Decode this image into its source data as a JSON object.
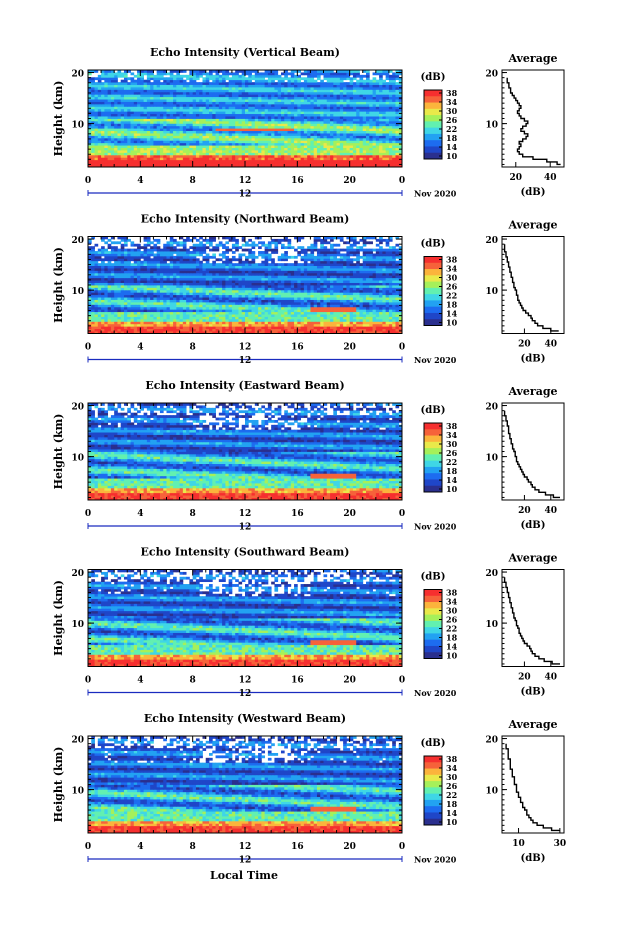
{
  "footer": {
    "xlabel": "Local Time"
  },
  "colorbar": {
    "unit": "(dB)",
    "ticks": [
      "38",
      "34",
      "30",
      "26",
      "22",
      "18",
      "14",
      "10"
    ],
    "colors": [
      "#2a2f8e",
      "#1f46c8",
      "#1d6cf0",
      "#22a2f2",
      "#3fd6e6",
      "#62f0b0",
      "#a6f05a",
      "#e9e94a",
      "#fbb43c",
      "#f6623a",
      "#f62f2f"
    ]
  },
  "chart_data": [
    {
      "type": "heatmap",
      "title": "Echo Intensity (Vertical Beam)",
      "ylabel": "Height (km)",
      "xticks": [
        "0",
        "4",
        "8",
        "12",
        "16",
        "20",
        "0"
      ],
      "yticks": [
        "20",
        "10"
      ],
      "xlim": [
        0,
        24
      ],
      "ylim": [
        1.5,
        20.5
      ],
      "date_center": "12",
      "date_label": "Nov 2020",
      "colorbar_range": [
        10,
        38
      ],
      "profile": {
        "title": "Average",
        "xlabel": "(dB)",
        "xticks": [
          "20",
          "40"
        ],
        "xlim": [
          12,
          48
        ],
        "heights": [
          2.0,
          2.5,
          3.0,
          3.5,
          4.0,
          4.5,
          5.0,
          5.5,
          6.0,
          6.5,
          7.0,
          7.5,
          8.0,
          8.5,
          9.0,
          9.5,
          10.0,
          10.5,
          11.0,
          11.5,
          12.0,
          12.5,
          13.0,
          13.5,
          14.0,
          14.5,
          15.0,
          15.5,
          16.0,
          16.5,
          17.0,
          17.5,
          18.0,
          18.5,
          19.0
        ],
        "values": [
          46,
          44,
          38,
          30,
          24,
          22,
          21,
          22,
          23,
          22,
          24,
          26,
          27,
          25,
          23,
          24,
          26,
          27,
          25,
          23,
          22,
          21,
          22,
          23,
          22,
          21,
          20,
          19,
          18,
          17,
          17,
          16,
          16,
          15,
          15
        ]
      }
    },
    {
      "type": "heatmap",
      "title": "Echo Intensity (Northward Beam)",
      "ylabel": "Height (km)",
      "xticks": [
        "0",
        "4",
        "8",
        "12",
        "16",
        "20",
        "0"
      ],
      "yticks": [
        "20",
        "10"
      ],
      "xlim": [
        0,
        24
      ],
      "ylim": [
        1.5,
        20.5
      ],
      "date_center": "12",
      "date_label": "Nov 2020",
      "colorbar_range": [
        10,
        38
      ],
      "profile": {
        "title": "Average",
        "xlabel": "(dB)",
        "xticks": [
          "20",
          "40"
        ],
        "xlim": [
          3,
          50
        ],
        "heights": [
          2.0,
          2.5,
          3.0,
          3.5,
          4.0,
          4.5,
          5.0,
          5.5,
          6.0,
          6.5,
          7.0,
          7.5,
          8.0,
          8.5,
          9.0,
          9.5,
          10.0,
          10.5,
          11.0,
          11.5,
          12.0,
          12.5,
          13.0,
          13.5,
          14.0,
          14.5,
          15.0,
          15.5,
          16.0,
          16.5,
          17.0,
          17.5,
          18.0,
          18.5,
          19.0
        ],
        "values": [
          46,
          40,
          34,
          30,
          28,
          26,
          25,
          23,
          21,
          19,
          18,
          17,
          16,
          15,
          15,
          14,
          14,
          13,
          12,
          12,
          11,
          11,
          10,
          10,
          9,
          9,
          8,
          8,
          7,
          7,
          6,
          6,
          5,
          5,
          5
        ]
      }
    },
    {
      "type": "heatmap",
      "title": "Echo Intensity (Eastward Beam)",
      "ylabel": "Height (km)",
      "xticks": [
        "0",
        "4",
        "8",
        "12",
        "16",
        "20",
        "0"
      ],
      "yticks": [
        "20",
        "10"
      ],
      "xlim": [
        0,
        24
      ],
      "ylim": [
        1.5,
        20.5
      ],
      "date_center": "12",
      "date_label": "Nov 2020",
      "colorbar_range": [
        10,
        38
      ],
      "profile": {
        "title": "Average",
        "xlabel": "(dB)",
        "xticks": [
          "20",
          "40"
        ],
        "xlim": [
          3,
          50
        ],
        "heights": [
          2.0,
          2.5,
          3.0,
          3.5,
          4.0,
          4.5,
          5.0,
          5.5,
          6.0,
          6.5,
          7.0,
          7.5,
          8.0,
          8.5,
          9.0,
          9.5,
          10.0,
          10.5,
          11.0,
          11.5,
          12.0,
          12.5,
          13.0,
          13.5,
          14.0,
          14.5,
          15.0,
          15.5,
          16.0,
          16.5,
          17.0,
          17.5,
          18.0,
          18.5,
          19.0
        ],
        "values": [
          47,
          42,
          36,
          31,
          28,
          26,
          25,
          23,
          22,
          20,
          19,
          18,
          17,
          16,
          15,
          14,
          14,
          13,
          13,
          12,
          11,
          11,
          10,
          10,
          9,
          9,
          8,
          8,
          8,
          7,
          7,
          6,
          6,
          5,
          5
        ]
      }
    },
    {
      "type": "heatmap",
      "title": "Echo Intensity (Southward Beam)",
      "ylabel": "Height (km)",
      "xticks": [
        "0",
        "4",
        "8",
        "12",
        "16",
        "20",
        "0"
      ],
      "yticks": [
        "20",
        "10"
      ],
      "xlim": [
        0,
        24
      ],
      "ylim": [
        1.5,
        20.5
      ],
      "date_center": "12",
      "date_label": "Nov 2020",
      "colorbar_range": [
        10,
        38
      ],
      "profile": {
        "title": "Average",
        "xlabel": "(dB)",
        "xticks": [
          "20",
          "40"
        ],
        "xlim": [
          3,
          50
        ],
        "heights": [
          2.0,
          2.5,
          3.0,
          3.5,
          4.0,
          4.5,
          5.0,
          5.5,
          6.0,
          6.5,
          7.0,
          7.5,
          8.0,
          8.5,
          9.0,
          9.5,
          10.0,
          10.5,
          11.0,
          11.5,
          12.0,
          12.5,
          13.0,
          13.5,
          14.0,
          14.5,
          15.0,
          15.5,
          16.0,
          16.5,
          17.0,
          17.5,
          18.0,
          18.5,
          19.0
        ],
        "values": [
          47,
          41,
          35,
          31,
          28,
          26,
          25,
          24,
          22,
          20,
          19,
          18,
          17,
          16,
          16,
          15,
          14,
          14,
          13,
          12,
          12,
          11,
          11,
          10,
          10,
          9,
          9,
          8,
          8,
          7,
          7,
          6,
          6,
          5,
          5
        ]
      }
    },
    {
      "type": "heatmap",
      "title": "Echo Intensity (Westward Beam)",
      "ylabel": "Height (km)",
      "xticks": [
        "0",
        "4",
        "8",
        "12",
        "16",
        "20",
        "0"
      ],
      "yticks": [
        "20",
        "10"
      ],
      "xlim": [
        0,
        24
      ],
      "ylim": [
        1.5,
        20.5
      ],
      "date_center": "12",
      "date_label": "Nov 2020",
      "colorbar_range": [
        10,
        38
      ],
      "profile": {
        "title": "Average",
        "xlabel": "(dB)",
        "xticks": [
          "10",
          "30"
        ],
        "xlim": [
          2,
          32
        ],
        "heights": [
          2.0,
          2.5,
          3.0,
          3.5,
          4.0,
          4.5,
          5.0,
          5.5,
          6.0,
          6.5,
          7.0,
          7.5,
          8.0,
          8.5,
          9.0,
          9.5,
          10.0,
          10.5,
          11.0,
          11.5,
          12.0,
          12.5,
          13.0,
          13.5,
          14.0,
          14.5,
          15.0,
          15.5,
          16.0,
          16.5,
          17.0,
          17.5,
          18.0,
          18.5,
          19.0
        ],
        "values": [
          30,
          26,
          22,
          19,
          17,
          16,
          15,
          14,
          14,
          13,
          12,
          12,
          11,
          11,
          10,
          10,
          9,
          9,
          9,
          8,
          8,
          8,
          7,
          7,
          7,
          6,
          6,
          6,
          6,
          5,
          5,
          5,
          5,
          4,
          4
        ]
      }
    }
  ]
}
